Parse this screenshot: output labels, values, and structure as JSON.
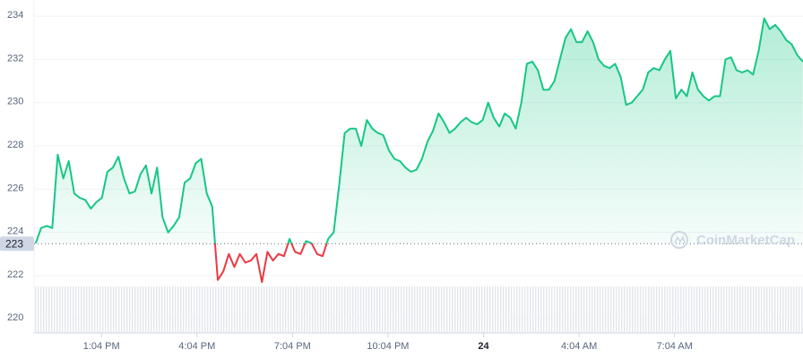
{
  "chart_data": {
    "type": "line",
    "watermark": "CoinMarketCap",
    "x": [
      660,
      670.4,
      680.8,
      691.2,
      701.6,
      712,
      722.4,
      732.8,
      743.2,
      753.6,
      764,
      774.4,
      784.8,
      795.2,
      805.6,
      816,
      826.4,
      836.8,
      847.2,
      857.6,
      868,
      878.4,
      888.8,
      899.2,
      909.6,
      920,
      930.4,
      940.8,
      951.2,
      961.6,
      972,
      982.4,
      992.8,
      1003.2,
      1013.6,
      1024,
      1034.4,
      1044.8,
      1055.2,
      1065.6,
      1076,
      1086.4,
      1096.8,
      1107.2,
      1117.6,
      1128,
      1138.4,
      1148.8,
      1159.2,
      1169.6,
      1180,
      1190.4,
      1200.8,
      1211.2,
      1221.6,
      1232,
      1242.4,
      1252.8,
      1263.2,
      1273.6,
      1284,
      1294.4,
      1304.8,
      1315.2,
      1325.6,
      1336,
      1346.4,
      1356.8,
      1367.2,
      1377.6,
      1388,
      1398.4,
      1408.8,
      1419.2,
      1429.6,
      1440,
      1450.4,
      1460.8,
      1471.2,
      1481.6,
      1492,
      1502.4,
      1512.8,
      1523.2,
      1533.6,
      1544,
      1554.4,
      1564.8,
      1575.2,
      1585.6,
      1596,
      1606.4,
      1616.8,
      1627.2,
      1637.6,
      1648,
      1658.4,
      1668.8,
      1679.2,
      1689.6,
      1700,
      1710.4,
      1720.8,
      1731.2,
      1741.6,
      1752,
      1762.4,
      1772.8,
      1783.2,
      1793.6,
      1804,
      1814.4,
      1824.8,
      1835.2,
      1845.6,
      1856,
      1866.4,
      1876.8,
      1887.2,
      1897.6,
      1908,
      1918.4,
      1928.8,
      1939.2,
      1949.6,
      1960,
      1970.4,
      1980.8,
      1991.2,
      2001.6,
      2012,
      2022.4,
      2032.8,
      2043.2,
      2053.6,
      2064,
      2074.4,
      2084.8,
      2095.2,
      2105.6
    ],
    "values": [
      223.5,
      224.2,
      224.3,
      224.2,
      227.6,
      226.5,
      227.3,
      225.8,
      225.6,
      225.5,
      225.1,
      225.4,
      225.6,
      226.8,
      227.0,
      227.5,
      226.5,
      225.8,
      225.9,
      226.7,
      227.1,
      225.8,
      227.0,
      224.7,
      224.0,
      224.3,
      224.7,
      226.3,
      226.5,
      227.2,
      227.4,
      225.8,
      225.2,
      221.8,
      222.2,
      223.0,
      222.4,
      223.0,
      222.6,
      222.7,
      223.0,
      221.7,
      223.1,
      222.7,
      223.0,
      222.9,
      223.7,
      223.1,
      223.0,
      223.6,
      223.5,
      223.0,
      222.9,
      223.7,
      224.0,
      226.2,
      228.6,
      228.8,
      228.8,
      228.0,
      229.2,
      228.8,
      228.6,
      228.5,
      227.8,
      227.4,
      227.3,
      227.0,
      226.8,
      226.9,
      227.4,
      228.2,
      228.7,
      229.5,
      229.1,
      228.6,
      228.8,
      229.1,
      229.3,
      229.1,
      229.0,
      229.2,
      230.0,
      229.3,
      228.9,
      229.5,
      229.3,
      228.8,
      230.0,
      231.8,
      231.9,
      231.5,
      230.6,
      230.6,
      231.0,
      232.0,
      233.0,
      233.4,
      232.8,
      232.8,
      233.3,
      232.8,
      232.0,
      231.7,
      231.6,
      231.8,
      231.2,
      229.9,
      230.0,
      230.3,
      230.6,
      231.4,
      231.6,
      231.5,
      232.0,
      232.4,
      230.2,
      230.6,
      230.3,
      231.4,
      230.6,
      230.3,
      230.1,
      230.3,
      230.3,
      232.0,
      232.1,
      231.5,
      231.4,
      231.5,
      231.3,
      232.4,
      233.9,
      233.4,
      233.6,
      233.3,
      232.9,
      232.7,
      232.2,
      231.9
    ],
    "baseline": {
      "value": 223.48,
      "label": "223"
    },
    "colors": {
      "above": "#16c784",
      "below": "#ea3943"
    },
    "xlim": [
      657,
      2106
    ],
    "xticks": [
      {
        "value": 784,
        "label": "1:04 PM"
      },
      {
        "value": 964,
        "label": "4:04 PM"
      },
      {
        "value": 1144,
        "label": "7:04 PM"
      },
      {
        "value": 1324,
        "label": "10:04 PM"
      },
      {
        "value": 1504,
        "label": "24",
        "bold": true
      },
      {
        "value": 1684,
        "label": "4:04 AM"
      },
      {
        "value": 1864,
        "label": "7:04 AM"
      }
    ],
    "ylim": [
      219.35,
      234.75
    ],
    "yticks": [
      220,
      222,
      224,
      226,
      228,
      230,
      232,
      234
    ],
    "grid": true
  }
}
